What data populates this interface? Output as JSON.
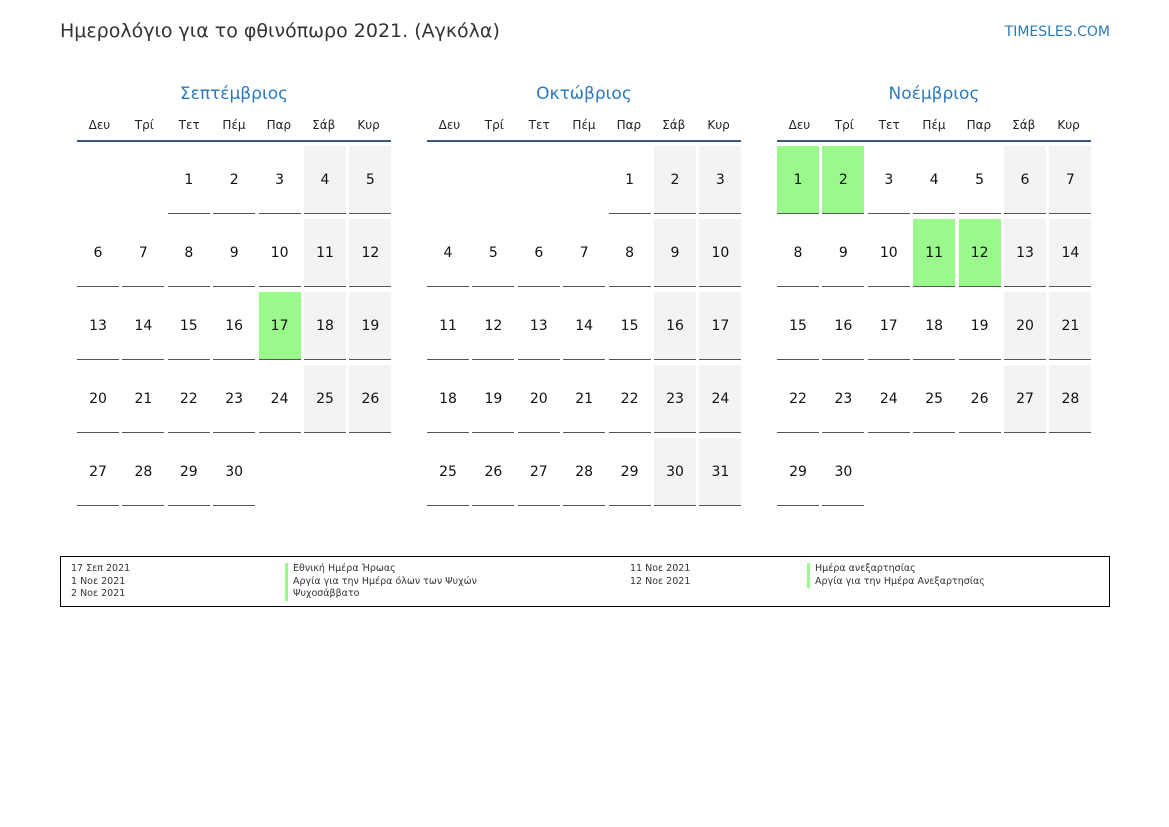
{
  "header": {
    "title": "Ημερολόγιο για το φθινόπωρο 2021. (Αγκόλα)",
    "brand": "TIMESLES.COM"
  },
  "weekdays": [
    "Δευ",
    "Τρί",
    "Τετ",
    "Πέμ",
    "Παρ",
    "Σάβ",
    "Κυρ"
  ],
  "months": [
    {
      "name": "Σεπτέμβριος",
      "first_weekday_index": 2,
      "days": 30,
      "holidays": [
        17
      ]
    },
    {
      "name": "Οκτώβριος",
      "first_weekday_index": 4,
      "days": 31,
      "holidays": []
    },
    {
      "name": "Νοέμβριος",
      "first_weekday_index": 0,
      "days": 30,
      "holidays": [
        1,
        2,
        11,
        12
      ]
    }
  ],
  "colors": {
    "holiday": "#99f98a",
    "weekend": "#f3f3f3",
    "accent": "#2a7abf"
  },
  "legend": {
    "left": [
      {
        "date": "17 Σεπ 2021",
        "name": "Εθνική Ημέρα Ήρωας"
      },
      {
        "date": "1 Νοε 2021",
        "name": "Αργία για την Ημέρα όλων των Ψυχών"
      },
      {
        "date": "2 Νοε 2021",
        "name": "Ψυχοσάββατο"
      }
    ],
    "right": [
      {
        "date": "11 Νοε 2021",
        "name": "Ημέρα ανεξαρτησίας"
      },
      {
        "date": "12 Νοε 2021",
        "name": "Αργία για την Ημέρα Ανεξαρτησίας"
      }
    ]
  }
}
